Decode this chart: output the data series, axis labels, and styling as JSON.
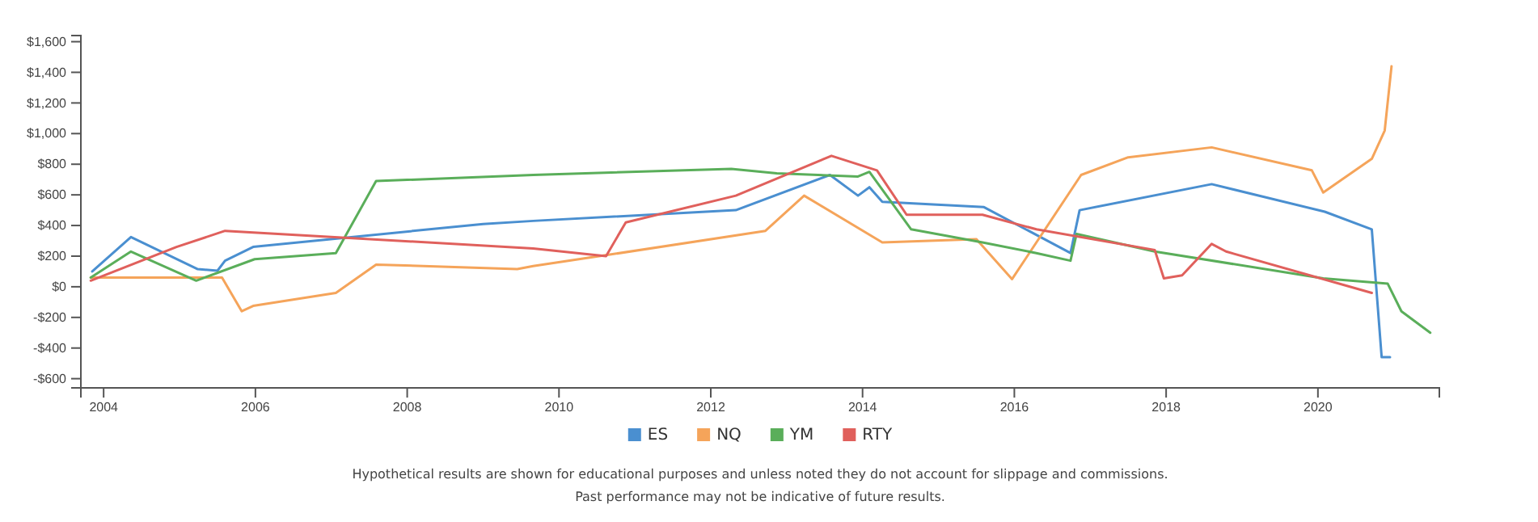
{
  "chart_data": {
    "type": "line",
    "xlim": [
      2003.7,
      2021.6
    ],
    "xticks": [
      2004,
      2006,
      2008,
      2010,
      2012,
      2014,
      2016,
      2018,
      2020
    ],
    "ylim": [
      -660,
      1640
    ],
    "yticks": [
      {
        "value": -600,
        "label": "-$600"
      },
      {
        "value": -400,
        "label": "-$400"
      },
      {
        "value": -200,
        "label": "-$200"
      },
      {
        "value": 0,
        "label": "$0"
      },
      {
        "value": 200,
        "label": "$200"
      },
      {
        "value": 400,
        "label": "$400"
      },
      {
        "value": 600,
        "label": "$600"
      },
      {
        "value": 800,
        "label": "$800"
      },
      {
        "value": 1000,
        "label": "$1,000"
      },
      {
        "value": 1200,
        "label": "$1,200"
      },
      {
        "value": 1400,
        "label": "$1,400"
      },
      {
        "value": 1600,
        "label": "$1,600"
      }
    ],
    "grid": false,
    "legend": "bottom",
    "marker": "none",
    "line_style": "solid",
    "series": [
      {
        "name": "ES",
        "color": "#4a8fd0",
        "x": [
          2003.85,
          2004.36,
          2005.24,
          2005.5,
          2005.6,
          2005.97,
          2009.0,
          2009.66,
          2012.33,
          2013.57,
          2013.94,
          2014.09,
          2014.26,
          2015.6,
          2016.74,
          2016.86,
          2018.6,
          2020.09,
          2020.71,
          2020.84,
          2020.95
        ],
        "values": [
          100,
          325,
          115,
          105,
          170,
          260,
          410,
          430,
          500,
          730,
          595,
          650,
          555,
          520,
          220,
          500,
          670,
          490,
          375,
          -460,
          -460
        ]
      },
      {
        "name": "NQ",
        "color": "#f5a45a",
        "x": [
          2003.83,
          2005.56,
          2005.82,
          2005.97,
          2007.06,
          2007.59,
          2009.45,
          2009.66,
          2010.67,
          2012.72,
          2013.23,
          2014.26,
          2015.5,
          2015.97,
          2016.88,
          2017.5,
          2018.6,
          2019.92,
          2020.07,
          2020.71,
          2020.88,
          2020.97
        ],
        "values": [
          60,
          60,
          -160,
          -125,
          -40,
          145,
          115,
          135,
          210,
          365,
          595,
          290,
          310,
          50,
          730,
          845,
          910,
          760,
          615,
          835,
          1020,
          1440
        ]
      },
      {
        "name": "YM",
        "color": "#5aae5a",
        "x": [
          2003.83,
          2004.36,
          2005.22,
          2005.99,
          2007.06,
          2007.59,
          2009.66,
          2012.27,
          2012.87,
          2013.94,
          2014.09,
          2014.64,
          2015.58,
          2016.29,
          2016.74,
          2016.82,
          2017.85,
          2020.07,
          2020.92,
          2021.1,
          2021.48
        ],
        "values": [
          60,
          230,
          40,
          180,
          220,
          690,
          730,
          770,
          740,
          720,
          750,
          375,
          290,
          220,
          170,
          345,
          230,
          55,
          20,
          -160,
          -300
        ]
      },
      {
        "name": "RTY",
        "color": "#e0605c",
        "x": [
          2003.83,
          2004.96,
          2005.6,
          2009.66,
          2010.62,
          2010.88,
          2012.33,
          2013.59,
          2014.19,
          2014.58,
          2015.58,
          2016.29,
          2017.85,
          2017.97,
          2018.21,
          2018.6,
          2018.79,
          2020.71
        ],
        "values": [
          40,
          260,
          365,
          250,
          200,
          420,
          595,
          855,
          760,
          470,
          470,
          375,
          240,
          55,
          75,
          280,
          230,
          -40
        ]
      }
    ],
    "annotations": [
      "Hypothetical results are shown for educational purposes and unless noted they do not account for slippage and commissions.",
      "Past performance may not be indicative of future results."
    ]
  }
}
